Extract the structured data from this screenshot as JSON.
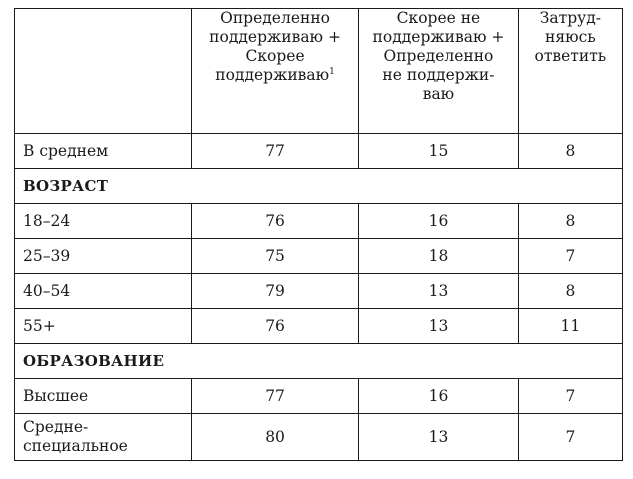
{
  "table": {
    "columns": [
      "",
      [
        "Определенно",
        "поддерживаю +",
        "Скорее",
        "поддерживаю"
      ],
      [
        "Скорее не",
        "поддерживаю +",
        "Определенно",
        "не поддержи-",
        "ваю"
      ],
      [
        "Затруд-",
        "няюсь",
        "ответить"
      ]
    ],
    "footnote_marker": "1",
    "rows": [
      {
        "label": "В среднем",
        "values": [
          "77",
          "15",
          "8"
        ]
      },
      {
        "section": "ВОЗРАСТ"
      },
      {
        "label": "18–24",
        "values": [
          "76",
          "16",
          "8"
        ]
      },
      {
        "label": "25–39",
        "values": [
          "75",
          "18",
          "7"
        ]
      },
      {
        "label": "40–54",
        "values": [
          "79",
          "13",
          "8"
        ]
      },
      {
        "label": "55+",
        "values": [
          "76",
          "13",
          "11"
        ]
      },
      {
        "section": "ОБРАЗОВАНИЕ"
      },
      {
        "label": "Высшее",
        "values": [
          "77",
          "16",
          "7"
        ]
      },
      {
        "label": [
          "Средне-",
          "специальное"
        ],
        "values": [
          "80",
          "13",
          "7"
        ]
      }
    ]
  }
}
